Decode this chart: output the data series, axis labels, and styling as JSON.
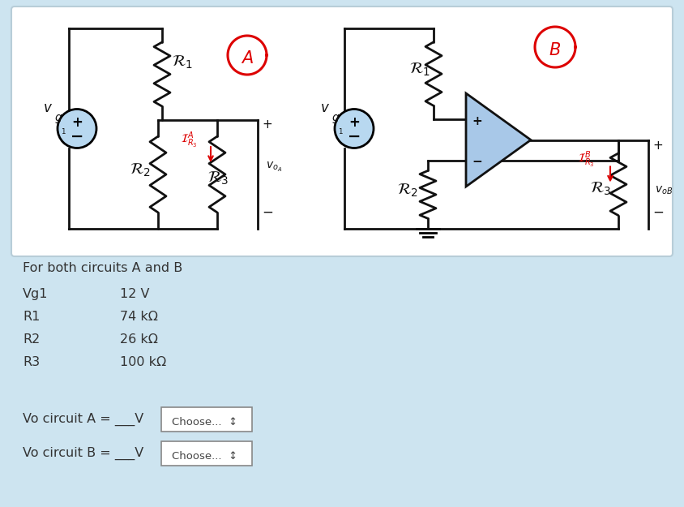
{
  "bg_page": "#cde4f0",
  "bg_panel": "#ffffff",
  "panel_edge": "#b8cdd8",
  "title_text": "For both circuits A and B",
  "params": [
    [
      "Vg1",
      "12 V"
    ],
    [
      "R1",
      "74 kΩ"
    ],
    [
      "R2",
      "26 kΩ"
    ],
    [
      "R3",
      "100 kΩ"
    ]
  ],
  "choose_text": "Choose...  ↕",
  "vs_fill": "#b8d8f0",
  "oa_fill": "#a8c8e8",
  "line_color": "#111111",
  "red_color": "#dd0000",
  "text_color": "#333333"
}
